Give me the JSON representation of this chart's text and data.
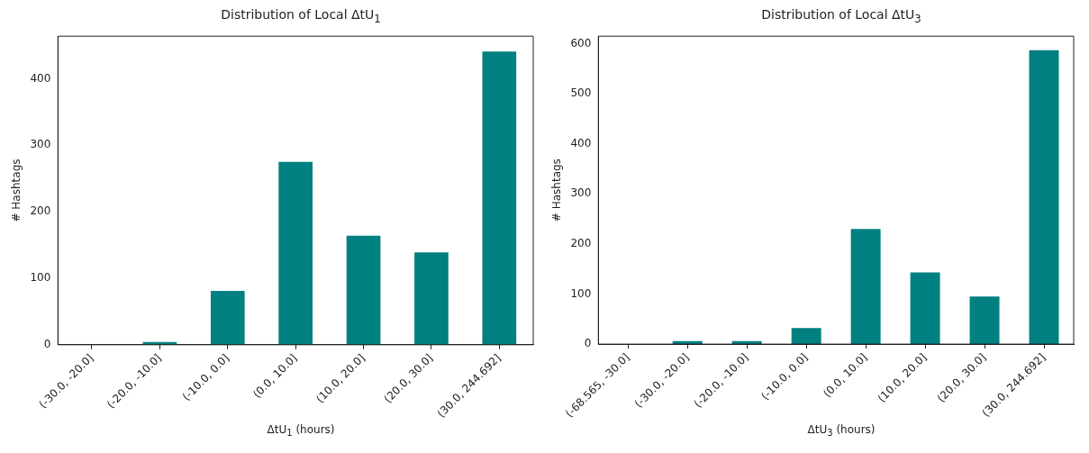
{
  "chart_data": [
    {
      "type": "bar",
      "title": "Distribution of Local ΔtU$_{1}$",
      "xlabel": "ΔtU$_{1}$ (hours)",
      "ylabel": "# Hashtags",
      "categories": [
        "(-30.0, -20.0]",
        "(-20.0, -10.0]",
        "(-10.0, 0.0]",
        "(0.0, 10.0]",
        "(10.0, 20.0]",
        "(20.0, 30.0]",
        "(30.0, 244.692]"
      ],
      "values": [
        0,
        4,
        81,
        275,
        164,
        139,
        441
      ],
      "color": "#008080",
      "ylim": [
        0,
        464
      ],
      "yticks": [
        0,
        100,
        200,
        300,
        400
      ],
      "grid": false
    },
    {
      "type": "bar",
      "title": "Distribution of Local ΔtU$_{3}$",
      "xlabel": "ΔtU$_{3}$ (hours)",
      "ylabel": "# Hashtags",
      "categories": [
        "(-68.565, -30.0]",
        "(-30.0, -20.0]",
        "(-20.0, -10.0]",
        "(-10.0, 0.0]",
        "(0.0, 10.0]",
        "(10.0, 20.0]",
        "(20.0, 30.0]",
        "(30.0, 244.692]"
      ],
      "values": [
        0,
        6,
        6,
        32,
        230,
        143,
        95,
        587
      ],
      "color": "#008080",
      "ylim": [
        0,
        615
      ],
      "yticks": [
        0,
        100,
        200,
        300,
        400,
        500,
        600
      ],
      "grid": false
    }
  ]
}
